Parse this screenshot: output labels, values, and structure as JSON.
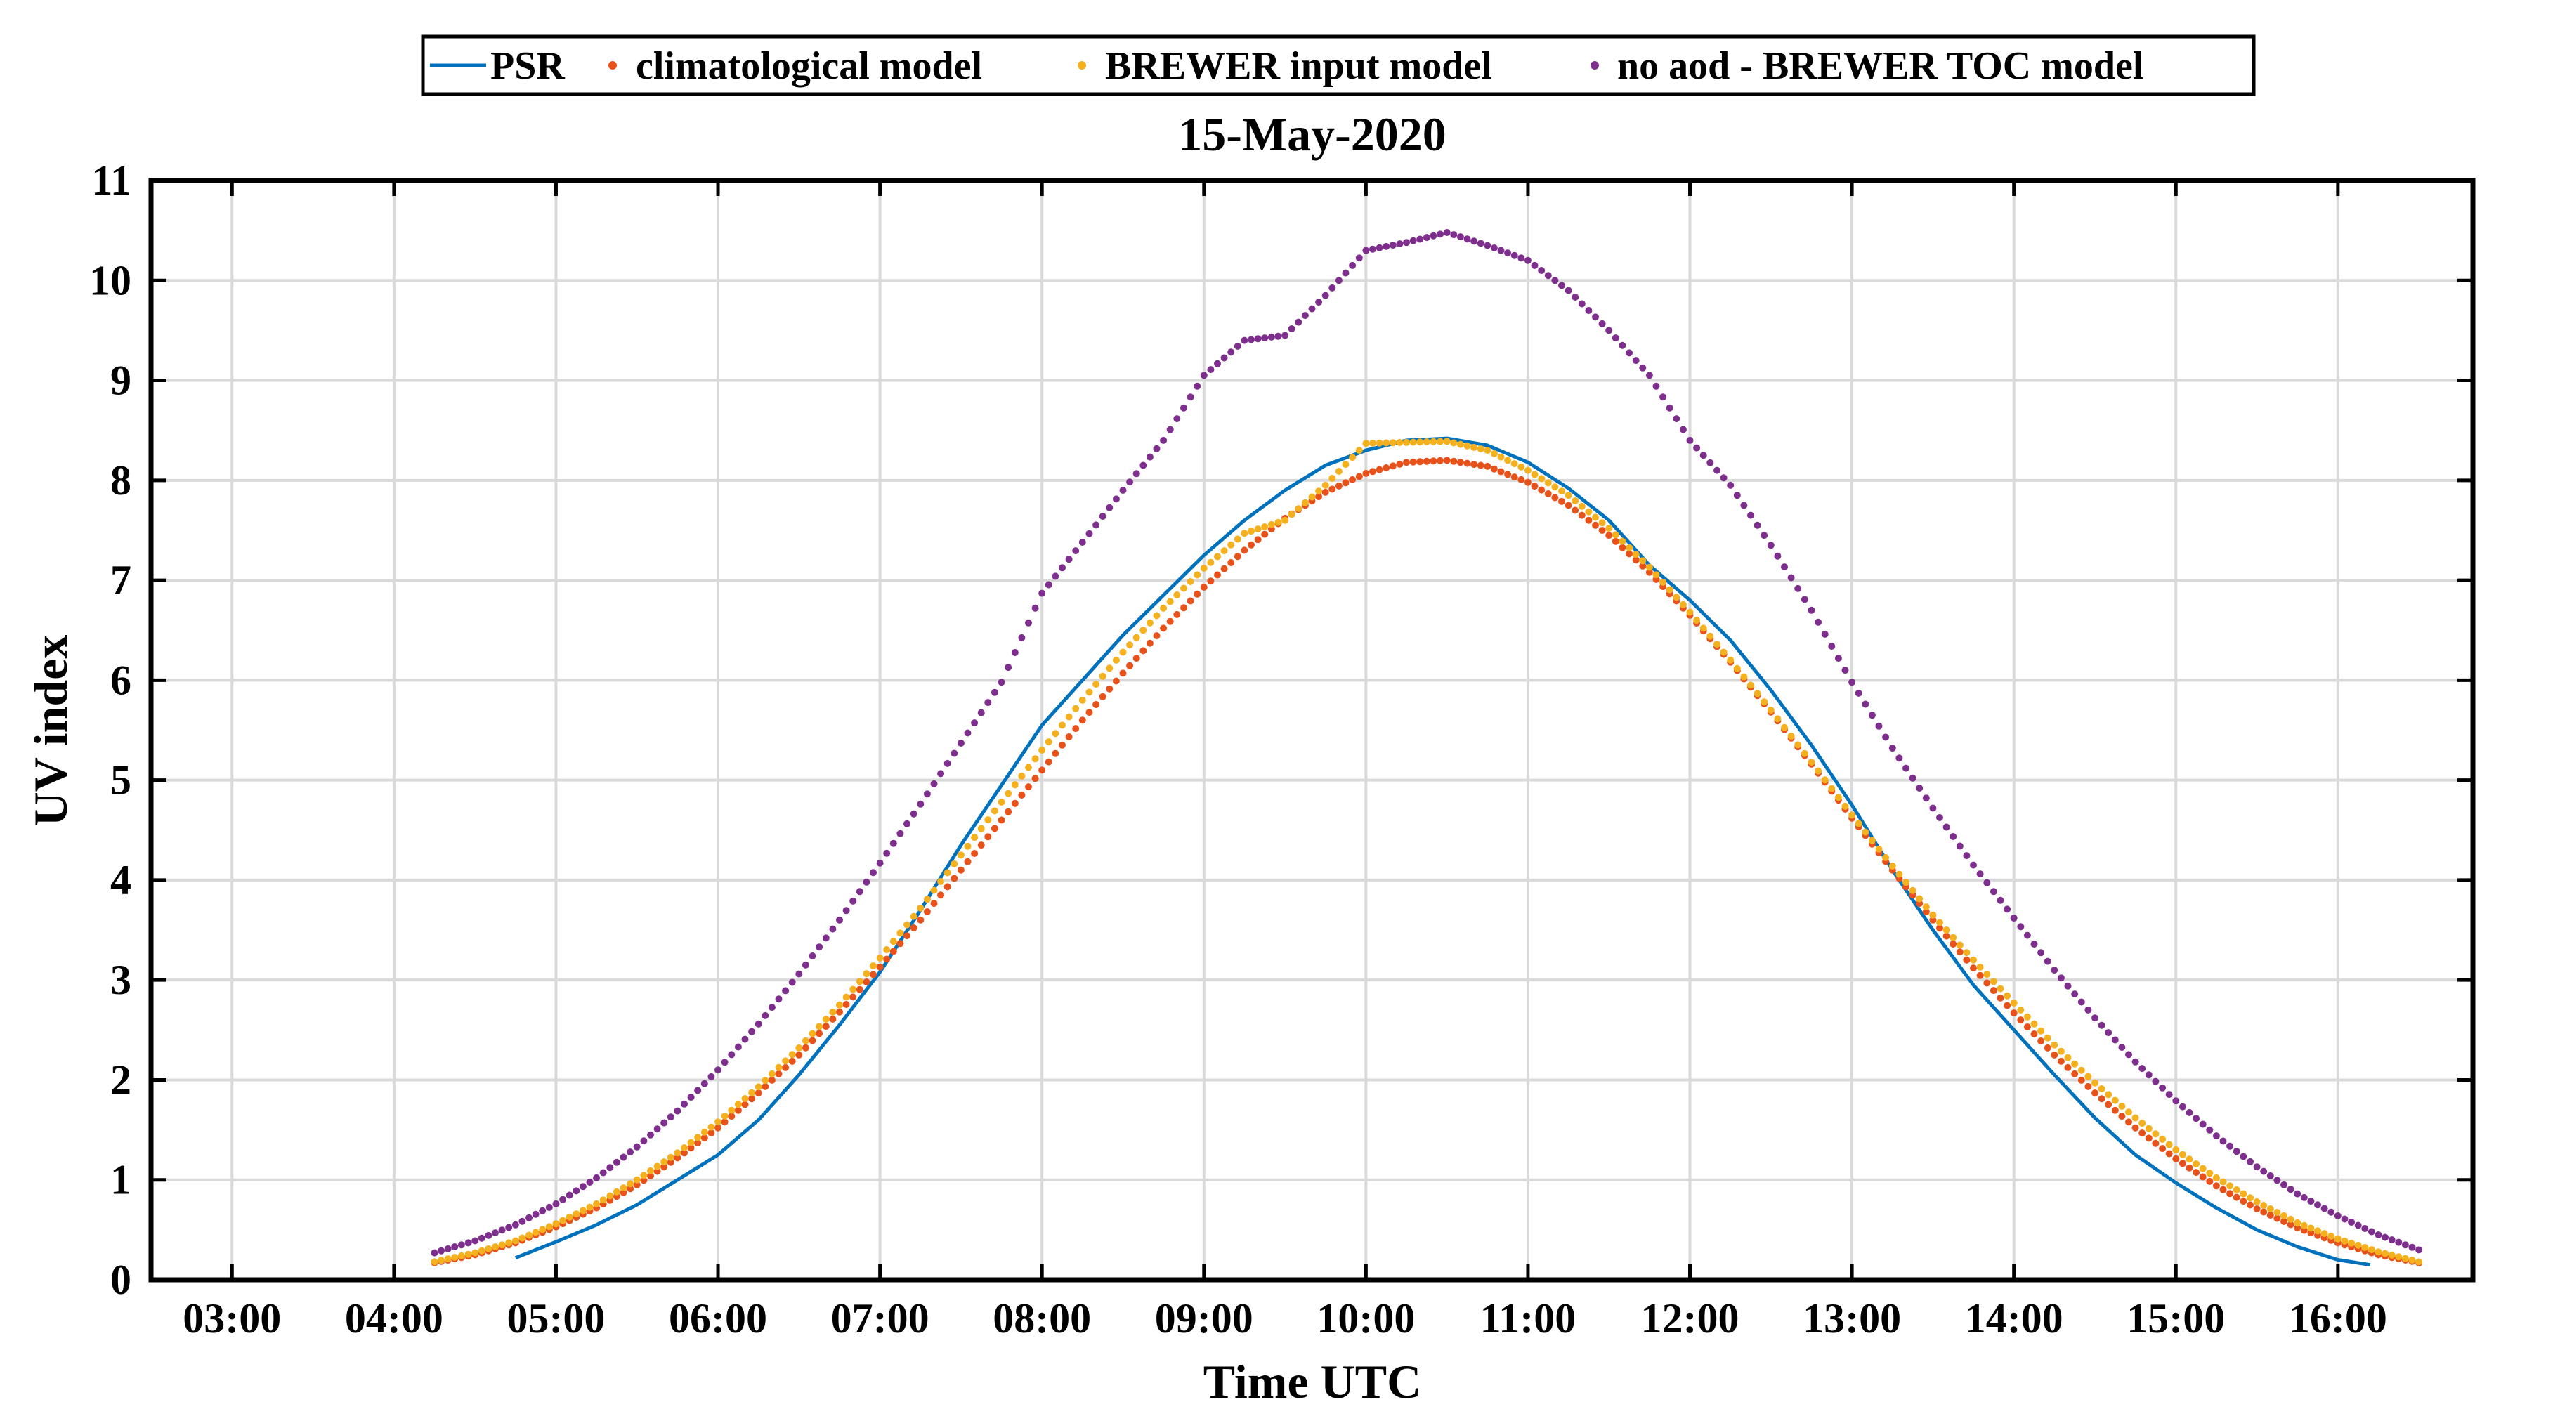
{
  "chart_data": {
    "type": "line",
    "title": "15-May-2020",
    "xlabel": "Time UTC",
    "ylabel": "UV index",
    "xlim": [
      "02:30",
      "16:50"
    ],
    "ylim": [
      0,
      11
    ],
    "x_ticks": [
      "03:00",
      "04:00",
      "05:00",
      "06:00",
      "07:00",
      "08:00",
      "09:00",
      "10:00",
      "11:00",
      "12:00",
      "13:00",
      "14:00",
      "15:00",
      "16:00"
    ],
    "y_ticks": [
      0,
      1,
      2,
      3,
      4,
      5,
      6,
      7,
      8,
      9,
      10,
      11
    ],
    "grid": true,
    "legend_position": "top, outside plot",
    "series": [
      {
        "name": "PSR",
        "style": "line",
        "color": "#0072BD",
        "points": [
          [
            "04:45",
            0.22
          ],
          [
            "05:00",
            0.38
          ],
          [
            "05:15",
            0.55
          ],
          [
            "05:30",
            0.75
          ],
          [
            "05:45",
            1.0
          ],
          [
            "06:00",
            1.25
          ],
          [
            "06:15",
            1.6
          ],
          [
            "06:30",
            2.05
          ],
          [
            "06:45",
            2.55
          ],
          [
            "07:00",
            3.08
          ],
          [
            "07:15",
            3.7
          ],
          [
            "07:30",
            4.35
          ],
          [
            "07:45",
            4.95
          ],
          [
            "08:00",
            5.55
          ],
          [
            "08:15",
            6.0
          ],
          [
            "08:30",
            6.45
          ],
          [
            "08:45",
            6.85
          ],
          [
            "09:00",
            7.25
          ],
          [
            "09:15",
            7.6
          ],
          [
            "09:30",
            7.9
          ],
          [
            "09:45",
            8.15
          ],
          [
            "10:00",
            8.3
          ],
          [
            "10:15",
            8.4
          ],
          [
            "10:30",
            8.42
          ],
          [
            "10:45",
            8.35
          ],
          [
            "11:00",
            8.18
          ],
          [
            "11:15",
            7.92
          ],
          [
            "11:30",
            7.6
          ],
          [
            "11:45",
            7.15
          ],
          [
            "12:00",
            6.8
          ],
          [
            "12:15",
            6.4
          ],
          [
            "12:30",
            5.9
          ],
          [
            "12:45",
            5.35
          ],
          [
            "13:00",
            4.75
          ],
          [
            "13:15",
            4.1
          ],
          [
            "13:30",
            3.5
          ],
          [
            "13:45",
            2.95
          ],
          [
            "14:00",
            2.5
          ],
          [
            "14:15",
            2.05
          ],
          [
            "14:30",
            1.62
          ],
          [
            "14:45",
            1.25
          ],
          [
            "15:00",
            0.97
          ],
          [
            "15:15",
            0.72
          ],
          [
            "15:30",
            0.5
          ],
          [
            "15:45",
            0.33
          ],
          [
            "16:00",
            0.2
          ],
          [
            "16:12",
            0.15
          ]
        ]
      },
      {
        "name": "climatological model",
        "style": "dots",
        "color": "#E8521A",
        "points": [
          [
            "04:15",
            0.17
          ],
          [
            "04:30",
            0.25
          ],
          [
            "04:45",
            0.37
          ],
          [
            "05:00",
            0.53
          ],
          [
            "05:15",
            0.72
          ],
          [
            "05:30",
            0.95
          ],
          [
            "05:45",
            1.22
          ],
          [
            "06:00",
            1.52
          ],
          [
            "06:15",
            1.87
          ],
          [
            "06:30",
            2.25
          ],
          [
            "06:45",
            2.68
          ],
          [
            "07:00",
            3.13
          ],
          [
            "07:15",
            3.6
          ],
          [
            "07:30",
            4.1
          ],
          [
            "07:45",
            4.6
          ],
          [
            "08:00",
            5.1
          ],
          [
            "08:15",
            5.6
          ],
          [
            "08:30",
            6.07
          ],
          [
            "08:45",
            6.52
          ],
          [
            "09:00",
            6.93
          ],
          [
            "09:15",
            7.3
          ],
          [
            "09:30",
            7.62
          ],
          [
            "09:45",
            7.88
          ],
          [
            "10:00",
            8.07
          ],
          [
            "10:15",
            8.18
          ],
          [
            "10:30",
            8.2
          ],
          [
            "10:45",
            8.14
          ],
          [
            "11:00",
            7.98
          ],
          [
            "11:15",
            7.75
          ],
          [
            "11:30",
            7.45
          ],
          [
            "11:45",
            7.08
          ],
          [
            "12:00",
            6.65
          ],
          [
            "12:15",
            6.18
          ],
          [
            "12:30",
            5.68
          ],
          [
            "12:45",
            5.16
          ],
          [
            "13:00",
            4.62
          ],
          [
            "13:15",
            4.1
          ],
          [
            "13:30",
            3.6
          ],
          [
            "13:45",
            3.12
          ],
          [
            "14:00",
            2.67
          ],
          [
            "14:15",
            2.25
          ],
          [
            "14:30",
            1.87
          ],
          [
            "14:45",
            1.52
          ],
          [
            "15:00",
            1.21
          ],
          [
            "15:15",
            0.94
          ],
          [
            "15:30",
            0.71
          ],
          [
            "15:45",
            0.52
          ],
          [
            "16:00",
            0.37
          ],
          [
            "16:15",
            0.25
          ],
          [
            "16:30",
            0.17
          ]
        ]
      },
      {
        "name": "BREWER input model",
        "style": "dots",
        "color": "#F5B01E",
        "points": [
          [
            "04:15",
            0.18
          ],
          [
            "04:30",
            0.27
          ],
          [
            "04:45",
            0.39
          ],
          [
            "05:00",
            0.56
          ],
          [
            "05:15",
            0.76
          ],
          [
            "05:30",
            1.0
          ],
          [
            "05:45",
            1.27
          ],
          [
            "06:00",
            1.58
          ],
          [
            "06:15",
            1.93
          ],
          [
            "06:30",
            2.32
          ],
          [
            "06:45",
            2.75
          ],
          [
            "07:00",
            3.22
          ],
          [
            "07:15",
            3.72
          ],
          [
            "07:30",
            4.25
          ],
          [
            "07:45",
            4.78
          ],
          [
            "08:00",
            5.3
          ],
          [
            "08:15",
            5.8
          ],
          [
            "08:30",
            6.28
          ],
          [
            "08:45",
            6.72
          ],
          [
            "09:00",
            7.12
          ],
          [
            "09:15",
            7.47
          ],
          [
            "09:30",
            7.6
          ],
          [
            "09:45",
            7.95
          ],
          [
            "10:00",
            8.37
          ],
          [
            "10:15",
            8.38
          ],
          [
            "10:30",
            8.39
          ],
          [
            "10:45",
            8.3
          ],
          [
            "11:00",
            8.1
          ],
          [
            "11:15",
            7.85
          ],
          [
            "11:30",
            7.52
          ],
          [
            "11:45",
            7.13
          ],
          [
            "12:00",
            6.68
          ],
          [
            "12:15",
            6.2
          ],
          [
            "12:30",
            5.7
          ],
          [
            "12:45",
            5.18
          ],
          [
            "13:00",
            4.65
          ],
          [
            "13:15",
            4.14
          ],
          [
            "13:30",
            3.65
          ],
          [
            "13:45",
            3.2
          ],
          [
            "14:00",
            2.77
          ],
          [
            "14:15",
            2.35
          ],
          [
            "14:30",
            1.97
          ],
          [
            "14:45",
            1.62
          ],
          [
            "15:00",
            1.3
          ],
          [
            "15:15",
            1.02
          ],
          [
            "15:30",
            0.78
          ],
          [
            "15:45",
            0.57
          ],
          [
            "16:00",
            0.41
          ],
          [
            "16:15",
            0.28
          ],
          [
            "16:30",
            0.18
          ]
        ]
      },
      {
        "name": "no aod - BREWER TOC model",
        "style": "dots",
        "color": "#7E2F8E",
        "points": [
          [
            "04:15",
            0.27
          ],
          [
            "04:30",
            0.39
          ],
          [
            "04:45",
            0.55
          ],
          [
            "05:00",
            0.76
          ],
          [
            "05:15",
            1.02
          ],
          [
            "05:30",
            1.33
          ],
          [
            "05:45",
            1.69
          ],
          [
            "06:00",
            2.1
          ],
          [
            "06:15",
            2.56
          ],
          [
            "06:30",
            3.06
          ],
          [
            "06:45",
            3.6
          ],
          [
            "07:00",
            4.17
          ],
          [
            "07:15",
            4.76
          ],
          [
            "07:30",
            5.37
          ],
          [
            "07:45",
            5.98
          ],
          [
            "08:00",
            6.87
          ],
          [
            "08:15",
            7.38
          ],
          [
            "08:30",
            7.9
          ],
          [
            "08:45",
            8.4
          ],
          [
            "09:00",
            9.05
          ],
          [
            "09:15",
            9.4
          ],
          [
            "09:30",
            9.45
          ],
          [
            "09:45",
            9.85
          ],
          [
            "10:00",
            10.3
          ],
          [
            "10:15",
            10.38
          ],
          [
            "10:30",
            10.48
          ],
          [
            "10:45",
            10.35
          ],
          [
            "11:00",
            10.2
          ],
          [
            "11:15",
            9.9
          ],
          [
            "11:30",
            9.5
          ],
          [
            "11:45",
            9.05
          ],
          [
            "12:00",
            8.4
          ],
          [
            "12:15",
            7.95
          ],
          [
            "12:30",
            7.35
          ],
          [
            "12:45",
            6.7
          ],
          [
            "13:00",
            5.98
          ],
          [
            "13:15",
            5.32
          ],
          [
            "13:30",
            4.72
          ],
          [
            "13:45",
            4.15
          ],
          [
            "14:00",
            3.62
          ],
          [
            "14:15",
            3.1
          ],
          [
            "14:30",
            2.62
          ],
          [
            "14:45",
            2.18
          ],
          [
            "15:00",
            1.79
          ],
          [
            "15:15",
            1.44
          ],
          [
            "15:30",
            1.13
          ],
          [
            "15:45",
            0.86
          ],
          [
            "16:00",
            0.64
          ],
          [
            "16:15",
            0.45
          ],
          [
            "16:30",
            0.3
          ]
        ]
      }
    ]
  }
}
